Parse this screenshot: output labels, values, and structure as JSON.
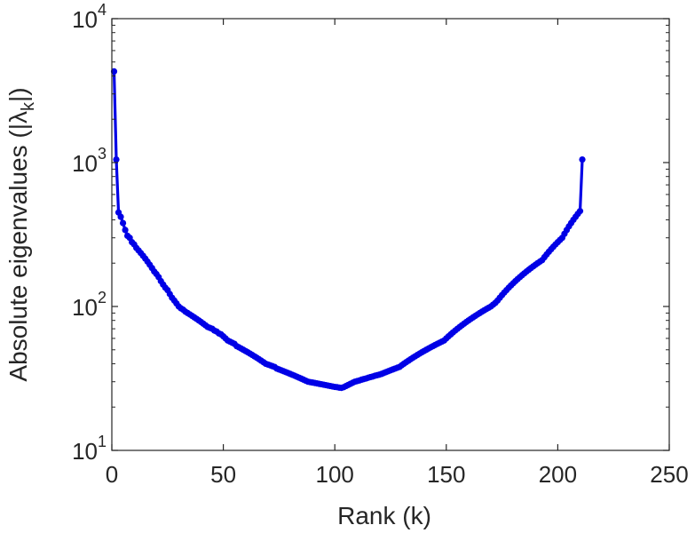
{
  "chart_data": {
    "type": "line",
    "title": "",
    "xlabel": "Rank (k)",
    "ylabel_parts": [
      "Absolute eigenvalues (|",
      "λ",
      "k",
      "|)"
    ],
    "xlim": [
      0,
      250
    ],
    "ylim": [
      10,
      10000
    ],
    "yscale": "log",
    "x_ticks": [
      "0",
      "50",
      "100",
      "150",
      "200",
      "250"
    ],
    "y_ticks": [
      {
        "base": "10",
        "exp": "1"
      },
      {
        "base": "10",
        "exp": "2"
      },
      {
        "base": "10",
        "exp": "3"
      },
      {
        "base": "10",
        "exp": "4"
      }
    ],
    "grid": false,
    "series": [
      {
        "color": "#0000e6",
        "marker": "circle",
        "start_rank": 1,
        "values": [
          4300,
          1050,
          450,
          420,
          380,
          340,
          310,
          300,
          280,
          270,
          255,
          245,
          235,
          225,
          215,
          205,
          195,
          185,
          175,
          168,
          160,
          150,
          142,
          135,
          130,
          122,
          115,
          110,
          105,
          100,
          97,
          95,
          92,
          90,
          88,
          86,
          84,
          82,
          80,
          78,
          76,
          74,
          72,
          71,
          70,
          68,
          67,
          65,
          64,
          62,
          60,
          58,
          57,
          56,
          55,
          53,
          52,
          51,
          50,
          49,
          48,
          47,
          46,
          45,
          44,
          43,
          42,
          41,
          40,
          39.5,
          39,
          38.5,
          38,
          37,
          36.5,
          36,
          35.5,
          35,
          34.5,
          34,
          33.5,
          33,
          32.5,
          32,
          31.5,
          31,
          30.5,
          30,
          29.8,
          29.6,
          29.4,
          29.2,
          29,
          28.8,
          28.6,
          28.4,
          28.2,
          28,
          27.8,
          27.6,
          27.5,
          27.3,
          27.2,
          27.5,
          28,
          28.5,
          29,
          29.5,
          30,
          30.3,
          30.6,
          31,
          31.3,
          31.6,
          32,
          32.3,
          32.6,
          33,
          33.3,
          33.6,
          34,
          34.5,
          35,
          35.5,
          36,
          36.5,
          37,
          37.5,
          38,
          39,
          40,
          41,
          42,
          43,
          44,
          45,
          46,
          47,
          48,
          49,
          50,
          51,
          52,
          53,
          54,
          55,
          56,
          57,
          58,
          60,
          62,
          64,
          66,
          68,
          70,
          72,
          74,
          76,
          78,
          80,
          82,
          84,
          86,
          88,
          90,
          92,
          94,
          96,
          98,
          100,
          103,
          106,
          110,
          115,
          120,
          125,
          130,
          135,
          140,
          145,
          150,
          155,
          160,
          165,
          170,
          175,
          180,
          185,
          190,
          195,
          200,
          205,
          210,
          220,
          230,
          240,
          250,
          260,
          270,
          280,
          290,
          300,
          320,
          340,
          360,
          380,
          400,
          420,
          440,
          460,
          1050
        ]
      }
    ]
  }
}
